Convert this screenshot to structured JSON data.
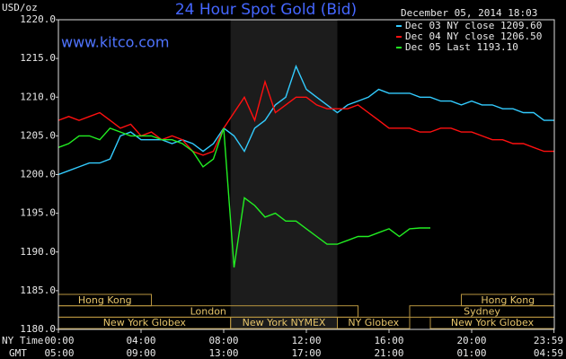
{
  "chart_data": {
    "type": "line",
    "title": "24 Hour Spot Gold (Bid)",
    "date": "December 05, 2014 18:03",
    "url": "www.kitco.com",
    "y_label": "USD/oz",
    "x_row_labels": [
      "NY Time",
      "GMT"
    ],
    "x": [
      0,
      0.5,
      1,
      1.5,
      2,
      2.5,
      3,
      3.5,
      4,
      4.5,
      5,
      5.5,
      6,
      6.5,
      7,
      7.5,
      8,
      8.5,
      9,
      9.5,
      10,
      10.5,
      11,
      11.5,
      12,
      12.5,
      13,
      13.5,
      14,
      14.5,
      15,
      15.5,
      16,
      16.5,
      17,
      17.5,
      18,
      18.5,
      19,
      19.5,
      20,
      20.5,
      21,
      21.5,
      22,
      22.5,
      23,
      23.5,
      24
    ],
    "series": [
      {
        "name": "Dec 03 NY close 1209.60",
        "color": "#33ccff",
        "values": [
          1200,
          1200.5,
          1201,
          1201.5,
          1201.5,
          1202,
          1205,
          1205.5,
          1204.5,
          1204.5,
          1204.5,
          1204,
          1204.5,
          1204,
          1203,
          1204,
          1206,
          1205,
          1203,
          1206,
          1207,
          1209,
          1210,
          1214,
          1211,
          1210,
          1209,
          1208,
          1209,
          1209.5,
          1210,
          1211,
          1210.5,
          1210.5,
          1210.5,
          1210,
          1210,
          1209.5,
          1209.5,
          1209,
          1209.5,
          1209,
          1209,
          1208.5,
          1208.5,
          1208,
          1208,
          1207,
          1207
        ]
      },
      {
        "name": "Dec 04 NY close 1206.50",
        "color": "#ff1010",
        "values": [
          1207,
          1207.5,
          1207,
          1207.5,
          1208,
          1207,
          1206,
          1206.5,
          1205,
          1205.5,
          1204.5,
          1205,
          1204.5,
          1203,
          1202.5,
          1203,
          1206,
          1208,
          1210,
          1207,
          1212,
          1208,
          1209,
          1210,
          1210,
          1209,
          1208.5,
          1208.5,
          1208.5,
          1209,
          1208,
          1207,
          1206,
          1206,
          1206,
          1205.5,
          1205.5,
          1206,
          1206,
          1205.5,
          1205.5,
          1205,
          1204.5,
          1204.5,
          1204,
          1204,
          1203.5,
          1203,
          1203
        ]
      },
      {
        "name": "Dec 05 Last 1193.10",
        "color": "#22ee22",
        "values": [
          1203.5,
          1204,
          1205,
          1205,
          1204.5,
          1206,
          1205.5,
          1205,
          1205,
          1205,
          1204.5,
          1204.5,
          1204,
          1203,
          1201,
          1202,
          1206,
          1188,
          1197,
          1196,
          1194.5,
          1195,
          1194,
          1194,
          1193,
          1192,
          1191,
          1191,
          1191.5,
          1192,
          1192,
          1192.5,
          1193,
          1192,
          1193,
          1193.1,
          1193.1,
          null,
          null,
          null,
          null,
          null,
          null,
          null,
          null,
          null,
          null,
          null,
          null
        ]
      }
    ],
    "xlim": [
      0,
      24
    ],
    "xticks": [
      {
        "value": 0,
        "label": "00:00"
      },
      {
        "value": 4,
        "label": "04:00"
      },
      {
        "value": 8,
        "label": "08:00"
      },
      {
        "value": 12,
        "label": "12:00"
      },
      {
        "value": 16,
        "label": "16:00"
      },
      {
        "value": 20,
        "label": "20:00"
      },
      {
        "value": 23.983,
        "label": "23:59"
      }
    ],
    "gmt_labels": [
      "05:00",
      "09:00",
      "13:00",
      "17:00",
      "21:00",
      "01:00",
      "04:59"
    ],
    "ylim": [
      1180,
      1220
    ],
    "yticks": [
      {
        "value": 1180,
        "label": "1180.0"
      },
      {
        "value": 1185,
        "label": "1185.0"
      },
      {
        "value": 1190,
        "label": "1190.0"
      },
      {
        "value": 1195,
        "label": "1195.0"
      },
      {
        "value": 1200,
        "label": "1200.0"
      },
      {
        "value": 1205,
        "label": "1205.0"
      },
      {
        "value": 1210,
        "label": "1210.0"
      },
      {
        "value": 1215,
        "label": "1215.0"
      },
      {
        "value": 1220,
        "label": "1220.0"
      }
    ],
    "shaded_xrange": [
      8.333,
      13.5
    ],
    "sessions": [
      {
        "name": "Hong Kong",
        "row": 0,
        "start": 0,
        "end": 4.5
      },
      {
        "name": "Hong Kong",
        "row": 0,
        "start": 19.5,
        "end": 24
      },
      {
        "name": "London",
        "row": 1,
        "start": 0,
        "end": 14.5
      },
      {
        "name": "Sydney",
        "row": 1,
        "start": 17,
        "end": 24
      },
      {
        "name": "New York Globex",
        "row": 2,
        "start": 0,
        "end": 8.333
      },
      {
        "name": "New York NYMEX",
        "row": 2,
        "start": 8.333,
        "end": 13.5
      },
      {
        "name": "NY Globex",
        "row": 2,
        "start": 13.5,
        "end": 17
      },
      {
        "name": "New York Globex",
        "row": 2,
        "start": 18,
        "end": 24
      }
    ]
  }
}
